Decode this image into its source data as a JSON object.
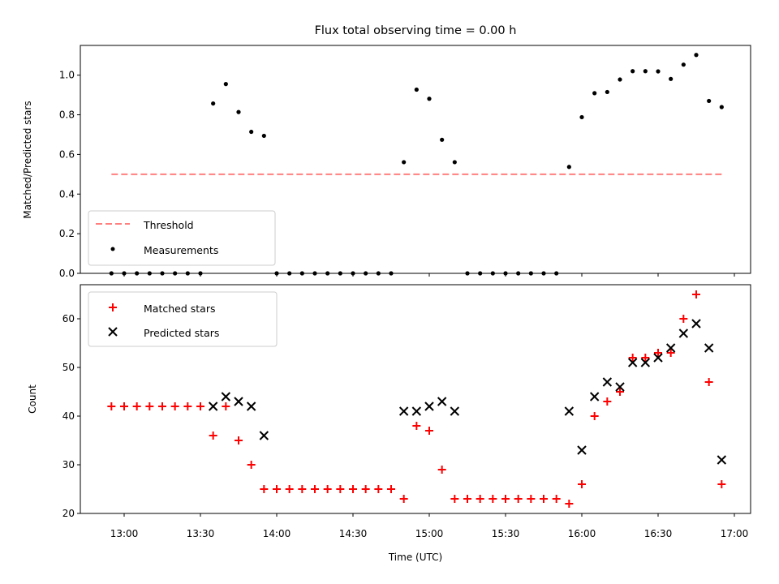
{
  "chart_data": [
    {
      "type": "scatter",
      "title": "Flux total observing time = 0.00 h",
      "xlabel": "",
      "ylabel": "Matched/Predicted stars",
      "ylim": [
        0,
        1.15
      ],
      "yticks": [
        "0.0",
        "0.2",
        "0.4",
        "0.6",
        "0.8",
        "1.0"
      ],
      "legend_position": "lower-left",
      "threshold": {
        "name": "Threshold",
        "value": 0.5,
        "x_start": "12:55",
        "x_end": "16:55",
        "color": "#ff7f7f"
      },
      "series": [
        {
          "name": "Measurements",
          "color": "#000000",
          "x": [
            "12:55",
            "13:00",
            "13:05",
            "13:10",
            "13:15",
            "13:20",
            "13:25",
            "13:30",
            "13:35",
            "13:40",
            "13:45",
            "13:50",
            "13:55",
            "14:00",
            "14:05",
            "14:10",
            "14:15",
            "14:20",
            "14:25",
            "14:30",
            "14:35",
            "14:40",
            "14:45",
            "14:50",
            "14:55",
            "15:00",
            "15:05",
            "15:10",
            "15:15",
            "15:20",
            "15:25",
            "15:30",
            "15:35",
            "15:40",
            "15:45",
            "15:50",
            "15:55",
            "16:00",
            "16:05",
            "16:10",
            "16:15",
            "16:20",
            "16:25",
            "16:30",
            "16:35",
            "16:40",
            "16:45",
            "16:50",
            "16:55"
          ],
          "y": [
            0,
            0,
            0,
            0,
            0,
            0,
            0,
            0,
            0.857,
            0.955,
            0.814,
            0.714,
            0.694,
            0,
            0,
            0,
            0,
            0,
            0,
            0,
            0,
            0,
            0,
            0.561,
            0.927,
            0.881,
            0.674,
            0.561,
            0,
            0,
            0,
            0,
            0,
            0,
            0,
            0,
            0.537,
            0.788,
            0.909,
            0.915,
            0.978,
            1.02,
            1.02,
            1.019,
            0.981,
            1.053,
            1.102,
            0.87,
            0.839
          ]
        }
      ]
    },
    {
      "type": "scatter",
      "title": "",
      "xlabel": "Time (UTC)",
      "ylabel": "Count",
      "ylim": [
        20,
        67
      ],
      "yticks": [
        "20",
        "30",
        "40",
        "50",
        "60"
      ],
      "xticks": [
        "13:00",
        "13:30",
        "14:00",
        "14:30",
        "15:00",
        "15:30",
        "16:00",
        "16:30",
        "17:00"
      ],
      "legend_position": "upper-left",
      "series": [
        {
          "name": "Matched stars",
          "marker": "plus",
          "color": "#ff0000",
          "x": [
            "12:55",
            "13:00",
            "13:05",
            "13:10",
            "13:15",
            "13:20",
            "13:25",
            "13:30",
            "13:35",
            "13:40",
            "13:45",
            "13:50",
            "13:55",
            "14:00",
            "14:05",
            "14:10",
            "14:15",
            "14:20",
            "14:25",
            "14:30",
            "14:35",
            "14:40",
            "14:45",
            "14:50",
            "14:55",
            "15:00",
            "15:05",
            "15:10",
            "15:15",
            "15:20",
            "15:25",
            "15:30",
            "15:35",
            "15:40",
            "15:45",
            "15:50",
            "15:55",
            "16:00",
            "16:05",
            "16:10",
            "16:15",
            "16:20",
            "16:25",
            "16:30",
            "16:35",
            "16:40",
            "16:45",
            "16:50",
            "16:55"
          ],
          "y": [
            42,
            42,
            42,
            42,
            42,
            42,
            42,
            42,
            36,
            42,
            35,
            30,
            25,
            25,
            25,
            25,
            25,
            25,
            25,
            25,
            25,
            25,
            25,
            23,
            38,
            37,
            29,
            23,
            23,
            23,
            23,
            23,
            23,
            23,
            23,
            23,
            22,
            26,
            40,
            43,
            45,
            52,
            52,
            53,
            53,
            60,
            65,
            47,
            26
          ]
        },
        {
          "name": "Predicted stars",
          "marker": "x",
          "color": "#000000",
          "x": [
            "13:35",
            "13:40",
            "13:45",
            "13:50",
            "13:55",
            "14:50",
            "14:55",
            "15:00",
            "15:05",
            "15:10",
            "15:55",
            "16:00",
            "16:05",
            "16:10",
            "16:15",
            "16:20",
            "16:25",
            "16:30",
            "16:35",
            "16:40",
            "16:45",
            "16:50",
            "16:55"
          ],
          "y": [
            42,
            44,
            43,
            42,
            36,
            41,
            41,
            42,
            43,
            41,
            41,
            33,
            44,
            47,
            46,
            51,
            51,
            52,
            54,
            57,
            59,
            54,
            31
          ]
        }
      ]
    }
  ]
}
